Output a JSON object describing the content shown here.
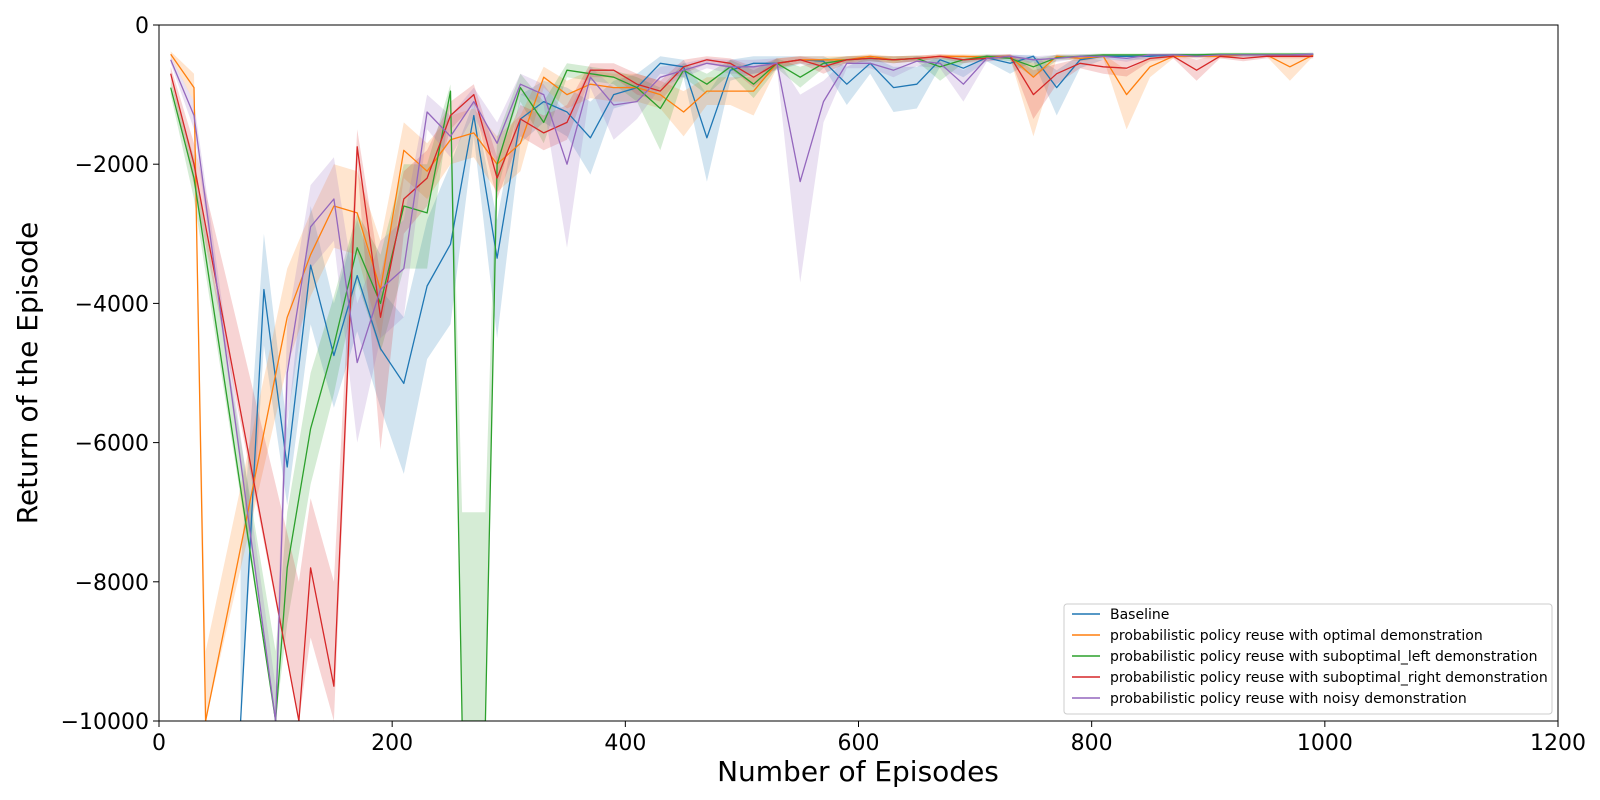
{
  "chart_data": {
    "type": "line",
    "title": "",
    "xlabel": "Number of Episodes",
    "ylabel": "Return of the Episode",
    "xlim": [
      0,
      1200
    ],
    "ylim": [
      -10000,
      0
    ],
    "xticks": [
      0,
      200,
      400,
      600,
      800,
      1000,
      1200
    ],
    "yticks": [
      0,
      -2000,
      -4000,
      -6000,
      -8000,
      -10000
    ],
    "xtick_labels": [
      "0",
      "200",
      "400",
      "600",
      "800",
      "1000",
      "1200"
    ],
    "ytick_labels": [
      "0",
      "−2000",
      "−4000",
      "−6000",
      "−8000",
      "−10000"
    ],
    "grid": false,
    "legend_position": "bottom-right",
    "series": [
      {
        "name": "Baseline",
        "color": "#1f77b4",
        "x": [
          70,
          90,
          110,
          130,
          150,
          170,
          190,
          210,
          230,
          250,
          270,
          290,
          310,
          330,
          350,
          370,
          390,
          410,
          430,
          450,
          470,
          490,
          510,
          530,
          550,
          570,
          590,
          610,
          630,
          650,
          670,
          690,
          710,
          730,
          750,
          770,
          790,
          810,
          830,
          850,
          870,
          890,
          910,
          930,
          950,
          970,
          990
        ],
        "y": [
          -10000,
          -3800,
          -6350,
          -3450,
          -4750,
          -3600,
          -4650,
          -5150,
          -3750,
          -3150,
          -1300,
          -3350,
          -1350,
          -1100,
          -1250,
          -1620,
          -1000,
          -900,
          -550,
          -600,
          -1620,
          -650,
          -550,
          -550,
          -500,
          -520,
          -850,
          -550,
          -900,
          -850,
          -500,
          -620,
          -470,
          -550,
          -450,
          -900,
          -500,
          -450,
          -450,
          -450,
          -430,
          -430,
          -430,
          -430,
          -430,
          -430,
          -420
        ],
        "upper": [
          -7800,
          -3000,
          -5800,
          -2600,
          -4000,
          -2800,
          -3800,
          -4200,
          -2800,
          -2000,
          -1100,
          -2800,
          -1000,
          -800,
          -900,
          -1100,
          -800,
          -700,
          -450,
          -500,
          -1000,
          -500,
          -450,
          -450,
          -450,
          -450,
          -600,
          -450,
          -600,
          -600,
          -450,
          -500,
          -430,
          -430,
          -430,
          -650,
          -430,
          -420,
          -420,
          -420,
          -410,
          -410,
          -410,
          -410,
          -410,
          -410,
          -400
        ],
        "lower": [
          -10000,
          -4600,
          -6900,
          -4300,
          -5500,
          -4400,
          -5500,
          -6450,
          -4800,
          -4300,
          -1600,
          -4500,
          -1700,
          -1400,
          -1600,
          -2150,
          -1200,
          -1100,
          -700,
          -750,
          -2250,
          -800,
          -700,
          -650,
          -560,
          -600,
          -1150,
          -700,
          -1250,
          -1200,
          -600,
          -750,
          -520,
          -700,
          -520,
          -1300,
          -620,
          -500,
          -500,
          -500,
          -460,
          -460,
          -460,
          -460,
          -460,
          -460,
          -450
        ]
      },
      {
        "name": "probabilistic policy reuse with optimal demonstration",
        "color": "#ff7f0e",
        "x": [
          10,
          30,
          40,
          110,
          130,
          150,
          170,
          190,
          210,
          230,
          250,
          270,
          290,
          310,
          330,
          350,
          370,
          390,
          410,
          430,
          450,
          470,
          490,
          510,
          530,
          550,
          570,
          590,
          610,
          630,
          650,
          670,
          690,
          710,
          730,
          750,
          770,
          790,
          810,
          830,
          850,
          870,
          890,
          910,
          930,
          950,
          970,
          990
        ],
        "y": [
          -420,
          -900,
          -10000,
          -4200,
          -3300,
          -2600,
          -2700,
          -3800,
          -1800,
          -2100,
          -1650,
          -1550,
          -2000,
          -1700,
          -750,
          -1000,
          -850,
          -900,
          -900,
          -1000,
          -1250,
          -950,
          -950,
          -950,
          -550,
          -500,
          -500,
          -500,
          -450,
          -500,
          -480,
          -450,
          -450,
          -460,
          -450,
          -750,
          -450,
          -480,
          -450,
          -1000,
          -600,
          -450,
          -450,
          -450,
          -430,
          -430,
          -600,
          -430
        ],
        "upper": [
          -380,
          -700,
          -9000,
          -3500,
          -2700,
          -2000,
          -2100,
          -3100,
          -1400,
          -1700,
          -1300,
          -1200,
          -1600,
          -1300,
          -600,
          -800,
          -650,
          -700,
          -700,
          -800,
          -950,
          -750,
          -750,
          -750,
          -480,
          -450,
          -450,
          -450,
          -420,
          -450,
          -440,
          -420,
          -420,
          -430,
          -420,
          -550,
          -420,
          -440,
          -420,
          -650,
          -480,
          -420,
          -420,
          -420,
          -410,
          -410,
          -430,
          -410
        ],
        "lower": [
          -460,
          -1100,
          -10000,
          -4900,
          -3900,
          -3200,
          -3300,
          -4500,
          -2200,
          -2500,
          -2000,
          -1900,
          -2400,
          -2100,
          -900,
          -1200,
          -1050,
          -1100,
          -1100,
          -1200,
          -1600,
          -1150,
          -1150,
          -1300,
          -620,
          -550,
          -550,
          -550,
          -480,
          -550,
          -520,
          -480,
          -480,
          -490,
          -480,
          -1600,
          -480,
          -520,
          -480,
          -1500,
          -750,
          -480,
          -480,
          -480,
          -450,
          -450,
          -800,
          -450
        ]
      },
      {
        "name": "probabilistic policy reuse with suboptimal_left demonstration",
        "color": "#2ca02c",
        "x": [
          10,
          30,
          100,
          110,
          130,
          150,
          170,
          190,
          210,
          230,
          250,
          260,
          270,
          280,
          290,
          310,
          330,
          350,
          370,
          390,
          410,
          430,
          450,
          470,
          490,
          510,
          530,
          550,
          570,
          590,
          610,
          630,
          650,
          670,
          690,
          710,
          730,
          750,
          770,
          790,
          810,
          830,
          850,
          870,
          890,
          910,
          930,
          950,
          970,
          990
        ],
        "y": [
          -900,
          -2200,
          -10000,
          -7800,
          -5800,
          -4600,
          -3200,
          -4000,
          -2600,
          -2700,
          -950,
          -10000,
          -10000,
          -10000,
          -2000,
          -900,
          -1400,
          -650,
          -700,
          -750,
          -900,
          -1200,
          -650,
          -850,
          -600,
          -850,
          -550,
          -750,
          -550,
          -500,
          -480,
          -500,
          -480,
          -600,
          -500,
          -450,
          -480,
          -600,
          -470,
          -450,
          -430,
          -430,
          -430,
          -430,
          -430,
          -420,
          -420,
          -420,
          -420,
          -420
        ],
        "upper": [
          -800,
          -1900,
          -9000,
          -7000,
          -5000,
          -3900,
          -2700,
          -3300,
          -2000,
          -2000,
          -850,
          -7000,
          -7000,
          -7000,
          -1600,
          -700,
          -1100,
          -550,
          -600,
          -650,
          -750,
          -900,
          -550,
          -700,
          -500,
          -650,
          -480,
          -600,
          -480,
          -450,
          -440,
          -450,
          -440,
          -480,
          -450,
          -420,
          -440,
          -480,
          -430,
          -420,
          -410,
          -410,
          -410,
          -410,
          -410,
          -400,
          -400,
          -400,
          -400,
          -400
        ],
        "lower": [
          -1000,
          -2500,
          -10000,
          -8600,
          -6600,
          -5300,
          -3700,
          -4700,
          -3500,
          -3500,
          -1100,
          -10000,
          -10000,
          -10000,
          -2400,
          -1100,
          -1700,
          -750,
          -800,
          -850,
          -1100,
          -1800,
          -750,
          -1000,
          -700,
          -1050,
          -620,
          -900,
          -620,
          -550,
          -520,
          -550,
          -520,
          -800,
          -550,
          -480,
          -520,
          -750,
          -510,
          -480,
          -450,
          -450,
          -450,
          -450,
          -450,
          -440,
          -440,
          -440,
          -440,
          -440
        ]
      },
      {
        "name": "probabilistic policy reuse with suboptimal_right demonstration",
        "color": "#d62728",
        "x": [
          10,
          30,
          120,
          130,
          150,
          170,
          190,
          210,
          230,
          250,
          270,
          290,
          310,
          330,
          350,
          370,
          390,
          410,
          430,
          450,
          470,
          490,
          510,
          530,
          550,
          570,
          590,
          610,
          630,
          650,
          670,
          690,
          710,
          730,
          750,
          770,
          790,
          810,
          830,
          850,
          870,
          890,
          910,
          930,
          950,
          970,
          990
        ],
        "y": [
          -700,
          -2000,
          -10000,
          -7800,
          -9500,
          -1750,
          -4200,
          -2500,
          -2200,
          -1300,
          -1000,
          -2200,
          -1350,
          -1550,
          -1400,
          -650,
          -650,
          -850,
          -950,
          -600,
          -500,
          -550,
          -750,
          -550,
          -500,
          -600,
          -500,
          -480,
          -500,
          -480,
          -450,
          -500,
          -480,
          -450,
          -1000,
          -700,
          -550,
          -600,
          -620,
          -480,
          -450,
          -650,
          -450,
          -480,
          -450,
          -450,
          -450
        ],
        "upper": [
          -600,
          -1700,
          -8000,
          -6800,
          -8000,
          -1500,
          -3600,
          -2100,
          -1800,
          -1100,
          -850,
          -1900,
          -1150,
          -1300,
          -1150,
          -550,
          -550,
          -700,
          -800,
          -500,
          -450,
          -480,
          -600,
          -480,
          -450,
          -500,
          -450,
          -440,
          -450,
          -440,
          -420,
          -450,
          -440,
          -420,
          -650,
          -560,
          -480,
          -500,
          -500,
          -440,
          -420,
          -500,
          -420,
          -440,
          -420,
          -420,
          -420
        ],
        "lower": [
          -800,
          -2300,
          -10000,
          -8800,
          -10000,
          -2000,
          -6100,
          -3000,
          -2600,
          -1500,
          -1150,
          -2500,
          -1600,
          -1800,
          -1650,
          -750,
          -750,
          -1000,
          -1100,
          -700,
          -560,
          -620,
          -900,
          -620,
          -550,
          -700,
          -550,
          -520,
          -550,
          -520,
          -480,
          -550,
          -520,
          -480,
          -1350,
          -850,
          -620,
          -700,
          -740,
          -520,
          -480,
          -800,
          -480,
          -520,
          -480,
          -480,
          -480
        ]
      },
      {
        "name": "probabilistic policy reuse with noisy demonstration",
        "color": "#9467bd",
        "x": [
          10,
          30,
          100,
          110,
          130,
          150,
          170,
          190,
          210,
          230,
          250,
          270,
          290,
          310,
          330,
          350,
          370,
          390,
          410,
          430,
          450,
          470,
          490,
          510,
          530,
          550,
          570,
          590,
          610,
          630,
          650,
          670,
          690,
          710,
          730,
          750,
          770,
          790,
          810,
          830,
          850,
          870,
          890,
          910,
          930,
          950,
          970,
          990
        ],
        "y": [
          -500,
          -1300,
          -10000,
          -5000,
          -2900,
          -2500,
          -4850,
          -3800,
          -3500,
          -1250,
          -1600,
          -1100,
          -1700,
          -850,
          -1000,
          -2000,
          -750,
          -1150,
          -1100,
          -750,
          -650,
          -550,
          -600,
          -600,
          -550,
          -2250,
          -1100,
          -550,
          -550,
          -650,
          -520,
          -550,
          -850,
          -480,
          -450,
          -500,
          -480,
          -450,
          -450,
          -480,
          -430,
          -430,
          -450,
          -430,
          -430,
          -430,
          -430,
          -420
        ],
        "upper": [
          -450,
          -1100,
          -9500,
          -4300,
          -2300,
          -1900,
          -4000,
          -3100,
          -2800,
          -1000,
          -1300,
          -900,
          -1400,
          -700,
          -850,
          -1300,
          -600,
          -900,
          -850,
          -600,
          -550,
          -480,
          -500,
          -500,
          -480,
          -1000,
          -800,
          -480,
          -480,
          -550,
          -450,
          -480,
          -650,
          -430,
          -420,
          -450,
          -430,
          -420,
          -420,
          -430,
          -410,
          -410,
          -420,
          -410,
          -410,
          -410,
          -410,
          -400
        ],
        "lower": [
          -550,
          -1500,
          -10000,
          -5700,
          -3500,
          -3100,
          -6000,
          -4500,
          -4200,
          -1500,
          -1900,
          -1300,
          -2000,
          -1000,
          -1150,
          -3200,
          -900,
          -1650,
          -1350,
          -900,
          -750,
          -620,
          -700,
          -700,
          -620,
          -3700,
          -1400,
          -620,
          -620,
          -750,
          -590,
          -620,
          -1100,
          -530,
          -480,
          -550,
          -530,
          -480,
          -480,
          -530,
          -450,
          -450,
          -480,
          -450,
          -450,
          -450,
          -450,
          -440
        ]
      }
    ]
  }
}
